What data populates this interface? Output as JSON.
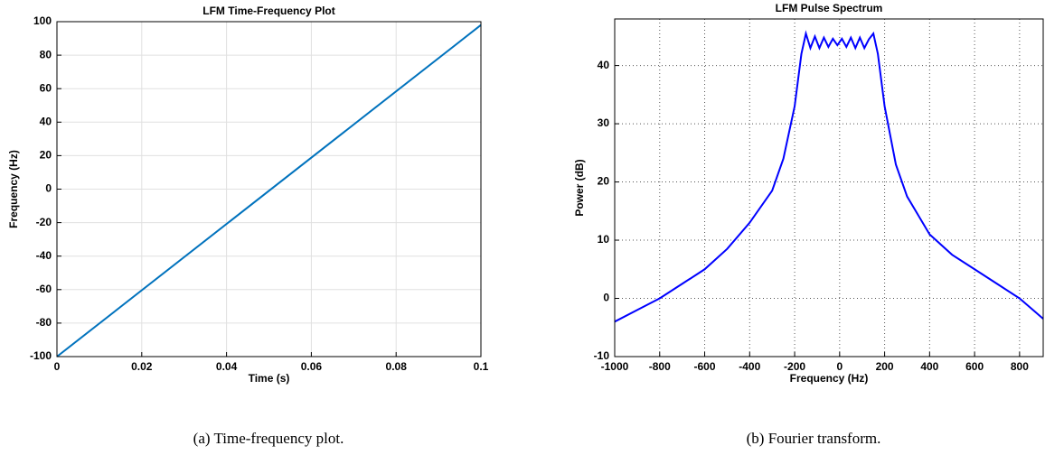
{
  "charts": [
    {
      "type": "line",
      "title": "LFM Time-Frequency Plot",
      "xlabel": "Time (s)",
      "ylabel": "Frequency (Hz)",
      "caption": "(a) Time-frequency plot.",
      "x": [
        0,
        0.1
      ],
      "series": [
        {
          "color": "#0072bd",
          "values": [
            -100,
            98
          ]
        }
      ],
      "xlim": [
        0,
        0.1
      ],
      "ylim": [
        -100,
        100
      ],
      "xticks": [
        0,
        0.02,
        0.04,
        0.06,
        0.08,
        0.1
      ],
      "yticks": [
        -100,
        -80,
        -60,
        -40,
        -20,
        0,
        20,
        40,
        60,
        80,
        100
      ],
      "grid": true,
      "grid_style": "solid"
    },
    {
      "type": "line",
      "title": "LFM Pulse Spectrum",
      "xlabel": "Frequency (Hz)",
      "ylabel": "Power (dB)",
      "caption": "(b) Fourier transform.",
      "x": [
        -1000,
        -900,
        -800,
        -700,
        -600,
        -500,
        -400,
        -300,
        -250,
        -200,
        -170,
        -150,
        -130,
        -110,
        -90,
        -70,
        -50,
        -30,
        -10,
        10,
        30,
        50,
        70,
        90,
        110,
        130,
        150,
        170,
        200,
        250,
        300,
        400,
        500,
        600,
        700,
        800,
        905
      ],
      "series": [
        {
          "color": "#0000ff",
          "values": [
            -4,
            -2,
            0,
            2.5,
            5,
            8.5,
            13,
            18.5,
            24,
            33,
            42,
            45.5,
            43,
            45,
            43,
            44.8,
            43.2,
            44.6,
            43.5,
            44.6,
            43.2,
            44.8,
            43,
            44.8,
            43,
            44.5,
            45.5,
            42,
            33,
            23,
            17.5,
            11,
            7.5,
            5,
            2.5,
            0,
            -3.5
          ]
        }
      ],
      "xlim": [
        -1000,
        905
      ],
      "ylim": [
        -10,
        48
      ],
      "xticks": [
        -1000,
        -800,
        -600,
        -400,
        -200,
        0,
        200,
        400,
        600,
        800
      ],
      "yticks": [
        -10,
        0,
        10,
        20,
        30,
        40
      ],
      "grid": true,
      "grid_style": "dotted"
    }
  ]
}
